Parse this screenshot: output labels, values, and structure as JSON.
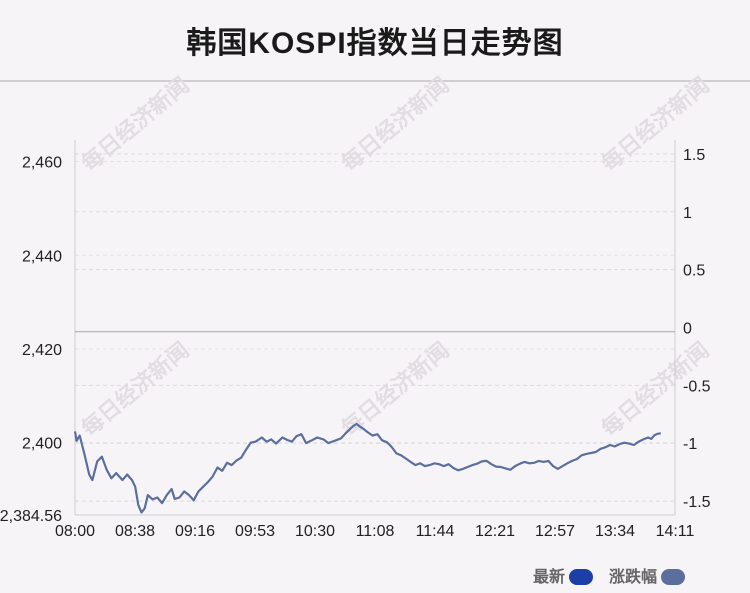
{
  "title": "韩国KOSPI指数当日走势图",
  "watermark": "每日经济新闻",
  "legend": {
    "latest_label": "最新",
    "latest_color": "#1b3fa6",
    "change_label": "涨跌幅",
    "change_color": "#5b6f9e"
  },
  "chart_data": {
    "type": "line",
    "title": "韩国KOSPI指数当日走势图",
    "xlabel": "",
    "ylabel": "",
    "x_ticks": [
      "08:00",
      "08:38",
      "09:16",
      "09:53",
      "10:30",
      "11:08",
      "11:44",
      "12:21",
      "12:57",
      "13:34",
      "14:11"
    ],
    "x_range_minutes": [
      0,
      379
    ],
    "y_left": {
      "ticks": [
        "2,460",
        "2,440",
        "2,420",
        "2,400",
        "2,384.56"
      ],
      "values": [
        2460,
        2440,
        2420,
        2400,
        2384.56
      ],
      "range": [
        2384.56,
        2464.6
      ]
    },
    "y_right": {
      "ticks": [
        "1.5",
        "1",
        "0.5",
        "0",
        "-0.5",
        "-1",
        "-1.5"
      ],
      "values": [
        1.5,
        1,
        0.5,
        0,
        -0.5,
        -1,
        -1.5
      ],
      "range": [
        -1.62,
        1.62
      ]
    },
    "reference_line": 2423.7,
    "grid": true,
    "legend_position": "bottom-right",
    "series": [
      {
        "name": "最新",
        "color": "#5b6f9e",
        "points": [
          [
            0,
            2402.4
          ],
          [
            1,
            2400.4
          ],
          [
            3,
            2401.5
          ],
          [
            6,
            2397.5
          ],
          [
            9,
            2393.2
          ],
          [
            11,
            2392.0
          ],
          [
            14,
            2396.0
          ],
          [
            17,
            2397.0
          ],
          [
            20,
            2394.2
          ],
          [
            23,
            2392.4
          ],
          [
            26,
            2393.5
          ],
          [
            30,
            2392.0
          ],
          [
            33,
            2393.2
          ],
          [
            36,
            2392.0
          ],
          [
            38,
            2390.6
          ],
          [
            40,
            2386.7
          ],
          [
            42,
            2385.1
          ],
          [
            44,
            2386.0
          ],
          [
            46,
            2388.8
          ],
          [
            49,
            2387.9
          ],
          [
            52,
            2388.3
          ],
          [
            55,
            2387.1
          ],
          [
            58,
            2388.8
          ],
          [
            61,
            2390.1
          ],
          [
            63,
            2388.0
          ],
          [
            66,
            2388.3
          ],
          [
            69,
            2389.6
          ],
          [
            72,
            2388.8
          ],
          [
            75,
            2387.7
          ],
          [
            78,
            2389.6
          ],
          [
            81,
            2390.6
          ],
          [
            84,
            2391.6
          ],
          [
            87,
            2392.8
          ],
          [
            90,
            2394.7
          ],
          [
            93,
            2394.0
          ],
          [
            96,
            2395.7
          ],
          [
            99,
            2395.2
          ],
          [
            102,
            2396.2
          ],
          [
            105,
            2396.8
          ],
          [
            108,
            2398.5
          ],
          [
            111,
            2400.0
          ],
          [
            114,
            2400.2
          ],
          [
            118,
            2401.1
          ],
          [
            121,
            2400.2
          ],
          [
            124,
            2400.7
          ],
          [
            127,
            2399.8
          ],
          [
            131,
            2401.1
          ],
          [
            134,
            2400.6
          ],
          [
            137,
            2400.2
          ],
          [
            140,
            2401.4
          ],
          [
            143,
            2401.8
          ],
          [
            146,
            2399.9
          ],
          [
            149,
            2400.4
          ],
          [
            153,
            2401.1
          ],
          [
            157,
            2400.7
          ],
          [
            160,
            2399.9
          ],
          [
            164,
            2400.4
          ],
          [
            168,
            2400.9
          ],
          [
            171,
            2402.0
          ],
          [
            174,
            2403.0
          ],
          [
            176,
            2403.6
          ],
          [
            178,
            2404.0
          ],
          [
            180,
            2403.4
          ],
          [
            182,
            2403.0
          ],
          [
            185,
            2402.2
          ],
          [
            188,
            2401.5
          ],
          [
            191,
            2401.8
          ],
          [
            194,
            2400.5
          ],
          [
            197,
            2400.1
          ],
          [
            200,
            2399.1
          ],
          [
            203,
            2397.7
          ],
          [
            206,
            2397.3
          ],
          [
            209,
            2396.6
          ],
          [
            212,
            2395.9
          ],
          [
            215,
            2395.2
          ],
          [
            218,
            2395.6
          ],
          [
            221,
            2395.0
          ],
          [
            224,
            2395.2
          ],
          [
            227,
            2395.6
          ],
          [
            230,
            2395.4
          ],
          [
            233,
            2395.0
          ],
          [
            236,
            2395.4
          ],
          [
            239,
            2394.6
          ],
          [
            242,
            2394.1
          ],
          [
            245,
            2394.4
          ],
          [
            248,
            2394.8
          ],
          [
            251,
            2395.2
          ],
          [
            254,
            2395.5
          ],
          [
            257,
            2396.0
          ],
          [
            260,
            2396.1
          ],
          [
            263,
            2395.4
          ],
          [
            266,
            2394.9
          ],
          [
            269,
            2394.8
          ],
          [
            272,
            2394.5
          ],
          [
            275,
            2394.2
          ],
          [
            278,
            2395.0
          ],
          [
            281,
            2395.5
          ],
          [
            284,
            2395.9
          ],
          [
            287,
            2395.6
          ],
          [
            290,
            2395.7
          ],
          [
            293,
            2396.1
          ],
          [
            296,
            2395.9
          ],
          [
            299,
            2396.1
          ],
          [
            302,
            2395.0
          ],
          [
            305,
            2394.4
          ],
          [
            308,
            2395.0
          ],
          [
            311,
            2395.6
          ],
          [
            314,
            2396.1
          ],
          [
            317,
            2396.5
          ],
          [
            320,
            2397.3
          ],
          [
            323,
            2397.6
          ],
          [
            326,
            2397.8
          ],
          [
            329,
            2398.0
          ],
          [
            332,
            2398.7
          ],
          [
            335,
            2399.0
          ],
          [
            338,
            2399.5
          ],
          [
            341,
            2399.2
          ],
          [
            344,
            2399.7
          ],
          [
            347,
            2400.0
          ],
          [
            350,
            2399.8
          ],
          [
            353,
            2399.5
          ],
          [
            356,
            2400.2
          ],
          [
            359,
            2400.7
          ],
          [
            362,
            2401.1
          ],
          [
            364,
            2400.8
          ],
          [
            366,
            2401.6
          ],
          [
            368,
            2401.9
          ],
          [
            370,
            2402.0
          ]
        ]
      }
    ]
  }
}
